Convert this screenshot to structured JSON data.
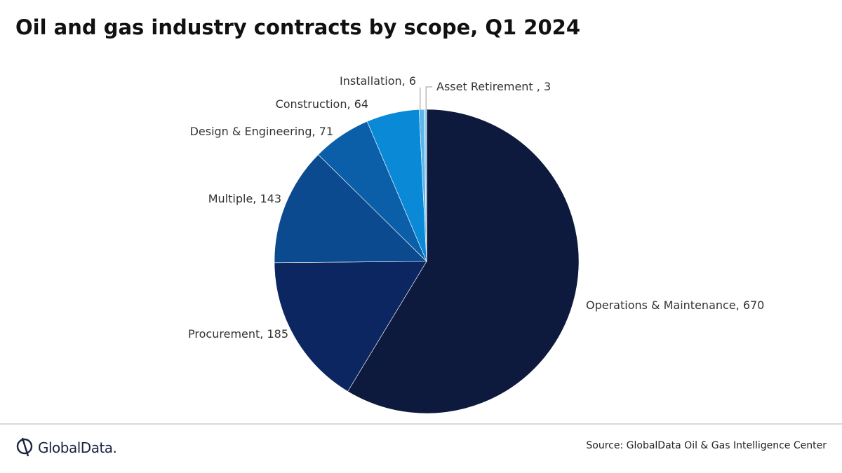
{
  "chart_data": {
    "type": "pie",
    "title": "Oil and gas industry contracts by scope, Q1 2024",
    "start_angle": "12 o'clock",
    "direction": "clockwise",
    "slices": [
      {
        "label": "Operations & Maintenance",
        "value": 670,
        "color": "#0d1a3d",
        "data_label": "Operations & Maintenance, 670"
      },
      {
        "label": "Procurement",
        "value": 185,
        "color": "#0b2660",
        "data_label": "Procurement, 185"
      },
      {
        "label": "Multiple",
        "value": 143,
        "color": "#0c4a8f",
        "data_label": "Multiple, 143"
      },
      {
        "label": "Design & Engineering",
        "value": 71,
        "color": "#0b5fa8",
        "data_label": "Design & Engineering, 71"
      },
      {
        "label": "Construction",
        "value": 64,
        "color": "#0a8ad6",
        "data_label": "Construction, 64"
      },
      {
        "label": "Installation",
        "value": 6,
        "color": "#5cb6ec",
        "data_label": "Installation, 6"
      },
      {
        "label": "Asset Retirement",
        "value": 3,
        "color": "#9ad0f2",
        "data_label": "Asset Retirement , 3"
      }
    ]
  },
  "footer": {
    "logo_text": "GlobalData.",
    "logo_icon": "globaldata-logo-icon",
    "source": "Source: GlobalData Oil & Gas Intelligence Center"
  }
}
